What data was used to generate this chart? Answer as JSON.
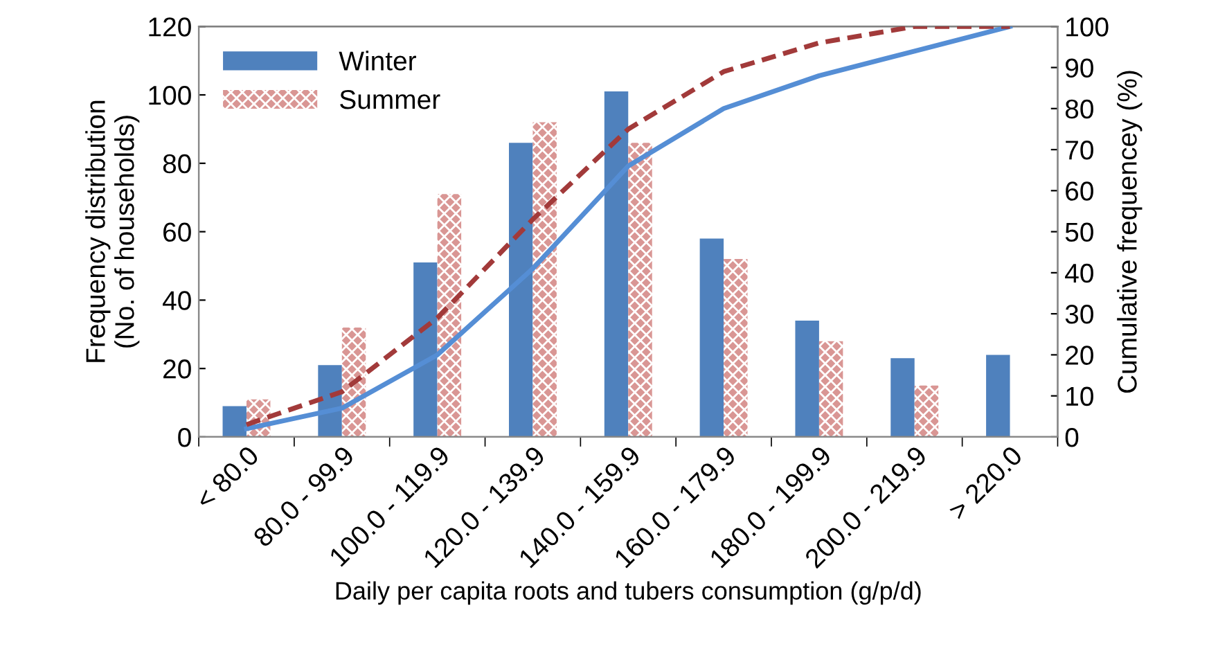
{
  "chart_data": {
    "type": "bar",
    "xlabel": "Daily per capita roots and tubers consumption (g/p/d)",
    "ylabel": "Frequency distribution\n(No. of households)",
    "y2label": "Cumulative frequencey (%)",
    "categories": [
      "< 80.0",
      "80.0 - 99.9",
      "100.0 - 119.9",
      "120.0 - 139.9",
      "140.0 - 159.9",
      "160.0 - 179.9",
      "180.0 - 199.9",
      "200.0 - 219.9",
      "> 220.0"
    ],
    "series": [
      {
        "name": "Winter",
        "color": "#4f81bd",
        "values": [
          9,
          21,
          51,
          86,
          101,
          58,
          34,
          23,
          24
        ]
      },
      {
        "name": "Summer",
        "color": "#d99694",
        "values": [
          11,
          32,
          71,
          92,
          86,
          52,
          28,
          15,
          null
        ]
      },
      {
        "type": "line",
        "axis": "y2",
        "color": "#558ed5",
        "line_style": "solid",
        "values": [
          2,
          7,
          20,
          41,
          66,
          80,
          88,
          94,
          100
        ]
      },
      {
        "type": "line",
        "axis": "y2",
        "color": "#a23a3a",
        "line_style": "dashed",
        "values": [
          3,
          11,
          29,
          53,
          75,
          89,
          96,
          100,
          100
        ]
      }
    ],
    "ylim": [
      0,
      120
    ],
    "yticks": [
      0,
      20,
      40,
      60,
      80,
      100,
      120
    ],
    "y2lim": [
      0,
      100
    ],
    "y2ticks": [
      0,
      10,
      20,
      30,
      40,
      50,
      60,
      70,
      80,
      90,
      100
    ],
    "legend": "top left",
    "grid": false
  }
}
